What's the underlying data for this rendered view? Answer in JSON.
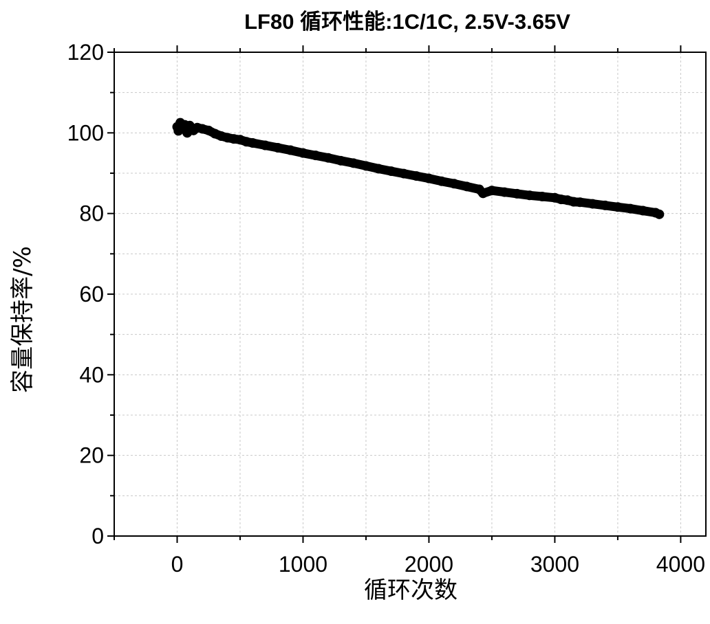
{
  "chart_data": {
    "type": "scatter",
    "title": "LF80 循环性能:1C/1C, 2.5V-3.65V",
    "xlabel": "循环次数",
    "ylabel": "容量保持率/%",
    "xlim": [
      -500,
      4200
    ],
    "ylim": [
      0,
      120
    ],
    "xticks": [
      0,
      1000,
      2000,
      3000,
      4000
    ],
    "yticks": [
      0,
      20,
      40,
      60,
      80,
      100,
      120
    ],
    "grid": true,
    "legend": "none",
    "marker_color": "#000000",
    "series": [
      {
        "x": [
          0,
          10,
          25,
          40,
          60,
          80,
          100,
          130,
          160,
          200,
          250,
          300,
          350,
          400,
          450,
          500,
          550,
          600,
          700,
          800,
          900,
          1000,
          1100,
          1200,
          1300,
          1400,
          1500,
          1600,
          1700,
          1800,
          1900,
          2000,
          2100,
          2200,
          2300,
          2400,
          2430,
          2500,
          2600,
          2700,
          2800,
          2900,
          3000,
          3050,
          3100,
          3150,
          3200,
          3300,
          3400,
          3500,
          3600,
          3700,
          3800,
          3830
        ],
        "y": [
          101.5,
          100.5,
          102.5,
          101.0,
          102.0,
          100.0,
          101.8,
          100.6,
          101.3,
          101.0,
          100.6,
          99.8,
          99.2,
          98.8,
          98.5,
          98.3,
          97.8,
          97.5,
          96.9,
          96.3,
          95.7,
          95.0,
          94.4,
          93.8,
          93.1,
          92.5,
          91.8,
          91.1,
          90.5,
          89.9,
          89.3,
          88.7,
          88.0,
          87.4,
          86.7,
          86.0,
          85.0,
          85.7,
          85.3,
          84.9,
          84.5,
          84.2,
          83.9,
          83.5,
          83.3,
          82.9,
          82.8,
          82.4,
          82.0,
          81.6,
          81.2,
          80.7,
          80.2,
          79.8
        ]
      }
    ]
  }
}
